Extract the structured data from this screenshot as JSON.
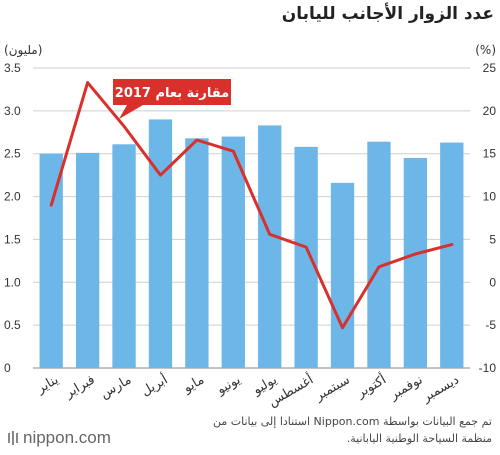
{
  "title": "عدد الزوار الأجانب لليابان",
  "chart_data": {
    "type": "bar+line",
    "categories": [
      "يناير",
      "فبراير",
      "مارس",
      "أبريل",
      "مايو",
      "يونيو",
      "يوليو",
      "أغسطس",
      "سبتمبر",
      "أكتوبر",
      "نوفمبر",
      "ديسمبر"
    ],
    "bar_series": {
      "unit_label": "(مليون)",
      "values": [
        2.5,
        2.51,
        2.61,
        2.9,
        2.68,
        2.7,
        2.83,
        2.58,
        2.16,
        2.64,
        2.45,
        2.63
      ],
      "ylim": [
        0,
        3.5
      ],
      "ticks": [
        "0",
        "0.5",
        "1.0",
        "1.5",
        "2.0",
        "2.5",
        "3.0",
        "3.5"
      ],
      "color": "#6cb6e8"
    },
    "line_series": {
      "name": "مقارنة بعام 2017",
      "unit_label": "(%)",
      "values": [
        9.0,
        23.3,
        18.2,
        12.5,
        16.6,
        15.3,
        5.6,
        4.1,
        -5.3,
        1.8,
        3.3,
        4.4
      ],
      "ylim": [
        -10,
        25
      ],
      "ticks": [
        "-10",
        "-5",
        "0",
        "5",
        "10",
        "15",
        "20",
        "25"
      ],
      "color": "#d9302c"
    },
    "grid": true
  },
  "footer": {
    "source": "تم جمع البيانات بواسطة Nippon.com استنادا إلى بيانات من منظمة السياحة الوطنية اليابانية.",
    "logo_text": "nippon.com"
  }
}
